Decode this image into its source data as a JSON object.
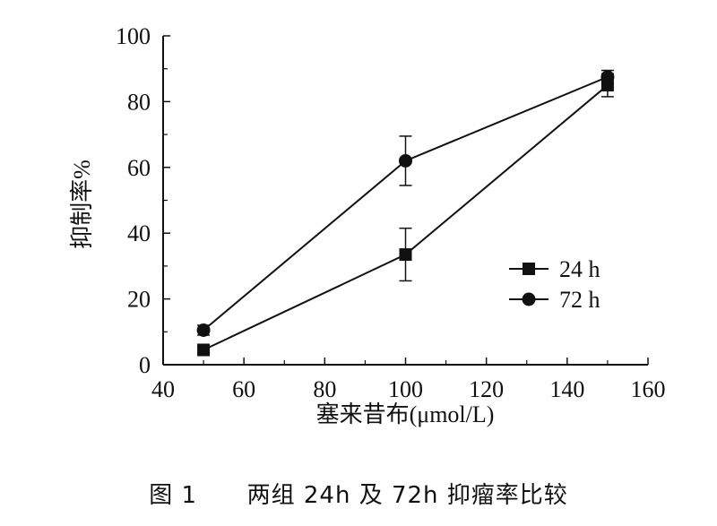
{
  "chart_data": {
    "type": "line",
    "xlabel": "塞来昔布(μmol/L)",
    "ylabel": "抑制率%",
    "xlim": [
      40,
      160
    ],
    "ylim": [
      0,
      100
    ],
    "x_ticks": [
      40,
      60,
      80,
      100,
      120,
      140,
      160
    ],
    "y_ticks": [
      0,
      20,
      40,
      60,
      80,
      100
    ],
    "grid": false,
    "legend_position": "right",
    "x": [
      50,
      100,
      150
    ],
    "series": [
      {
        "name": "24 h",
        "marker": "square",
        "values": [
          4.5,
          33.5,
          85
        ],
        "error": [
          1.0,
          8.0,
          3.5
        ]
      },
      {
        "name": "72 h",
        "marker": "circle",
        "values": [
          10.5,
          62,
          87.5
        ],
        "error": [
          1.5,
          7.5,
          2.0
        ]
      }
    ]
  },
  "caption": {
    "figure_number": "图 1",
    "text": "两组 24h 及 72h 抑瘤率比较"
  }
}
